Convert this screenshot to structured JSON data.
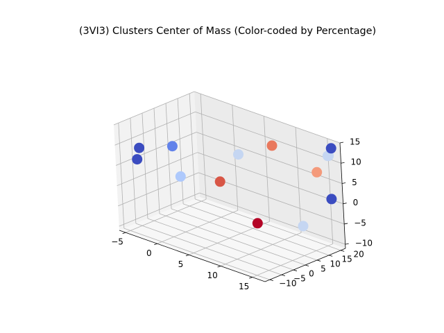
{
  "chart_data": {
    "type": "scatter",
    "projection": "3d",
    "title": "(3VI3) Clusters Center of Mass (Color-coded by Percentage)",
    "xlabel": "",
    "ylabel": "",
    "zlabel": "",
    "xlim": [
      -6,
      17
    ],
    "ylim": [
      -12,
      22
    ],
    "zlim": [
      -11,
      15
    ],
    "xticks": [
      -5,
      0,
      5,
      10,
      15
    ],
    "yticks": [
      -10,
      -5,
      0,
      5,
      10,
      15,
      20
    ],
    "zticks": [
      -10,
      -5,
      0,
      5,
      10,
      15
    ],
    "xtick_labels": [
      "−5",
      "0",
      "5",
      "10",
      "15"
    ],
    "ytick_labels": [
      "−10",
      "−5",
      "0",
      "5",
      "10",
      "15",
      "20"
    ],
    "ztick_labels": [
      "−10",
      "−5",
      "0",
      "5",
      "10",
      "15"
    ],
    "grid": true,
    "colormap": "coolwarm",
    "series": [
      {
        "points": [
          {
            "x": -5.5,
            "y": -3.3,
            "z": 7.5,
            "color": "#3b4cc0"
          },
          {
            "x": -2.6,
            "y": 3.0,
            "z": 8.0,
            "color": "#6282ea"
          },
          {
            "x": -2.8,
            "y": -11.3,
            "z": 8.1,
            "color": "#3b4cc0"
          },
          {
            "x": 5.5,
            "y": 9.3,
            "z": 8.9,
            "color": "#c5d6f2"
          },
          {
            "x": 7.4,
            "y": 18.5,
            "z": 9.9,
            "color": "#e9785d"
          },
          {
            "x": 2.8,
            "y": 8.1,
            "z": 1.0,
            "color": "#d85646"
          },
          {
            "x": 1.7,
            "y": -5.3,
            "z": 4.9,
            "color": "#aec9fc"
          },
          {
            "x": 12.1,
            "y": -1.2,
            "z": -1.9,
            "color": "#b40426"
          },
          {
            "x": 17.0,
            "y": 5.0,
            "z": -1.4,
            "color": "#c5d6f2"
          },
          {
            "x": 17.0,
            "y": 17.3,
            "z": 2.3,
            "color": "#3b4cc0"
          },
          {
            "x": 15.1,
            "y": 16.7,
            "z": 8.0,
            "color": "#f49a7b"
          },
          {
            "x": 16.3,
            "y": 18.8,
            "z": 12.2,
            "color": "#c5d6f2"
          },
          {
            "x": 15.9,
            "y": 19.5,
            "z": 11.8,
            "color": "#c5d6f2"
          },
          {
            "x": 16.5,
            "y": 19.5,
            "z": 14.0,
            "color": "#3b4cc0"
          }
        ]
      }
    ]
  }
}
